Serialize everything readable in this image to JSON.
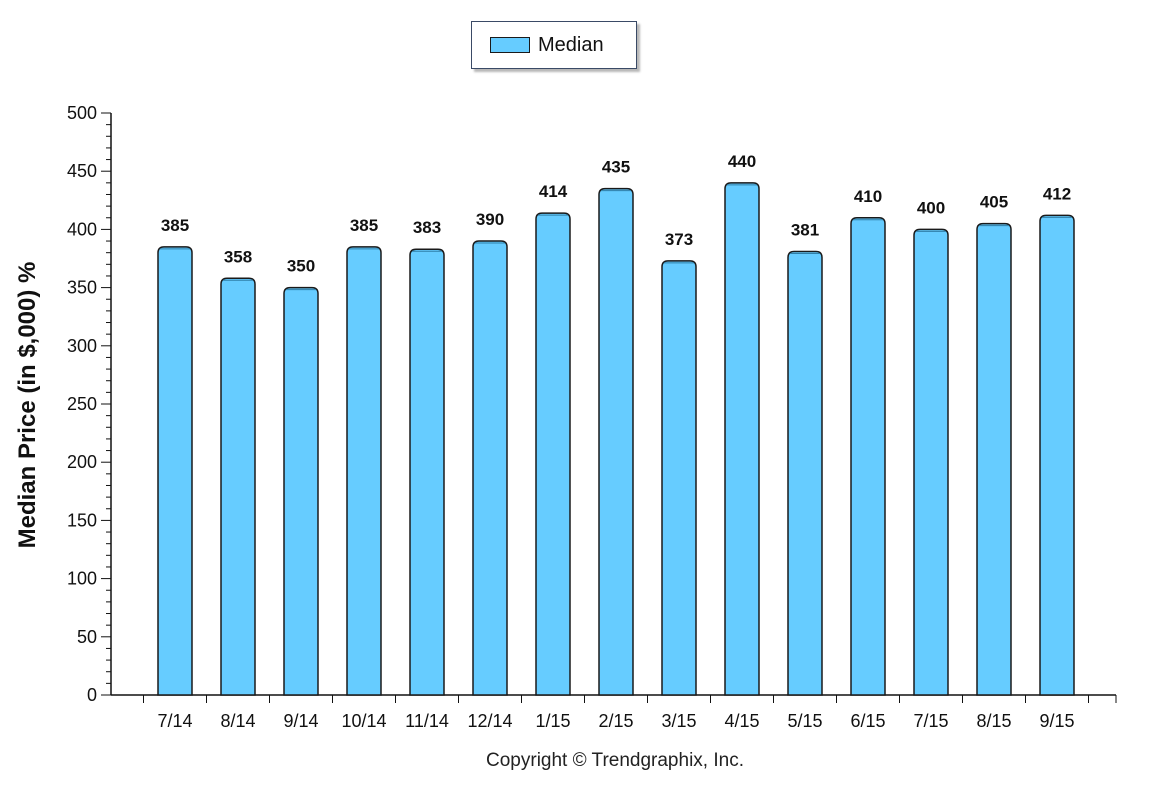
{
  "chart_data": {
    "type": "bar",
    "categories": [
      "7/14",
      "8/14",
      "9/14",
      "10/14",
      "11/14",
      "12/14",
      "1/15",
      "2/15",
      "3/15",
      "4/15",
      "5/15",
      "6/15",
      "7/15",
      "8/15",
      "9/15"
    ],
    "series": [
      {
        "name": "Median",
        "values": [
          385,
          358,
          350,
          385,
          383,
          390,
          414,
          435,
          373,
          440,
          381,
          410,
          400,
          405,
          412
        ]
      }
    ],
    "xlabel": "",
    "ylabel": "Median Price (in $,000) %",
    "ylim": [
      0,
      500
    ],
    "yticks": [
      0,
      50,
      100,
      150,
      200,
      250,
      300,
      350,
      400,
      450,
      500
    ],
    "legend": "top-center",
    "grid": false,
    "bar_color": "#66ccff",
    "bar_border_color": "#1a1a1a"
  },
  "footer": {
    "copyright": "Copyright © Trendgraphix, Inc."
  }
}
